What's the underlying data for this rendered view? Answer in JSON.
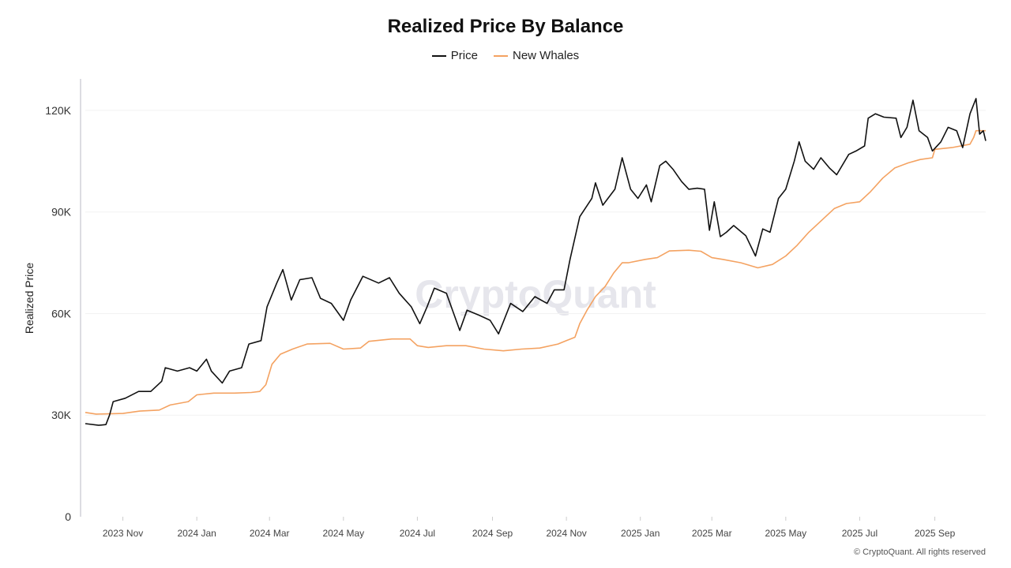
{
  "chart_data": {
    "type": "line",
    "title": "Realized Price By Balance",
    "xlabel": "",
    "ylabel": "Realized Price",
    "ylim": [
      0,
      130000
    ],
    "xlim": [
      "2023-10-01",
      "2025-10-13"
    ],
    "y_ticks": [
      0,
      30000,
      60000,
      90000,
      120000
    ],
    "y_tick_labels": [
      "0",
      "30K",
      "60K",
      "90K",
      "120K"
    ],
    "x_ticks": [
      "2023-11-01",
      "2024-01-01",
      "2024-03-01",
      "2024-05-01",
      "2024-07-01",
      "2024-09-01",
      "2024-11-01",
      "2025-01-01",
      "2025-03-01",
      "2025-05-01",
      "2025-07-01",
      "2025-09-01"
    ],
    "x_tick_labels": [
      "2023 Nov",
      "2024 Jan",
      "2024 Mar",
      "2024 May",
      "2024 Jul",
      "2024 Sep",
      "2024 Nov",
      "2025 Jan",
      "2025 Mar",
      "2025 May",
      "2025 Jul",
      "2025 Sep"
    ],
    "grid": "horizontal",
    "legend_position": "top-center",
    "watermark": "CryptoQuant",
    "series": [
      {
        "name": "Price",
        "color": "#111111",
        "points": [
          [
            "2023-10-01",
            27500
          ],
          [
            "2023-10-12",
            27000
          ],
          [
            "2023-10-18",
            27200
          ],
          [
            "2023-10-21",
            30000
          ],
          [
            "2023-10-24",
            34000
          ],
          [
            "2023-11-03",
            35000
          ],
          [
            "2023-11-14",
            37000
          ],
          [
            "2023-11-24",
            37000
          ],
          [
            "2023-12-03",
            40000
          ],
          [
            "2023-12-06",
            44000
          ],
          [
            "2023-12-16",
            43000
          ],
          [
            "2023-12-26",
            44000
          ],
          [
            "2024-01-01",
            43000
          ],
          [
            "2024-01-09",
            46500
          ],
          [
            "2024-01-13",
            43000
          ],
          [
            "2024-01-22",
            39500
          ],
          [
            "2024-01-28",
            43000
          ],
          [
            "2024-02-07",
            44000
          ],
          [
            "2024-02-13",
            51000
          ],
          [
            "2024-02-23",
            52000
          ],
          [
            "2024-02-28",
            62000
          ],
          [
            "2024-03-07",
            69000
          ],
          [
            "2024-03-12",
            73000
          ],
          [
            "2024-03-19",
            64000
          ],
          [
            "2024-03-26",
            70000
          ],
          [
            "2024-04-05",
            70600
          ],
          [
            "2024-04-12",
            64500
          ],
          [
            "2024-04-21",
            63000
          ],
          [
            "2024-05-01",
            58000
          ],
          [
            "2024-05-07",
            64000
          ],
          [
            "2024-05-17",
            71000
          ],
          [
            "2024-05-30",
            69000
          ],
          [
            "2024-06-08",
            70600
          ],
          [
            "2024-06-16",
            66000
          ],
          [
            "2024-06-26",
            62000
          ],
          [
            "2024-07-03",
            57000
          ],
          [
            "2024-07-09",
            62000
          ],
          [
            "2024-07-15",
            67500
          ],
          [
            "2024-07-25",
            66000
          ],
          [
            "2024-08-05",
            55000
          ],
          [
            "2024-08-11",
            61000
          ],
          [
            "2024-08-21",
            59500
          ],
          [
            "2024-08-30",
            58000
          ],
          [
            "2024-09-06",
            54000
          ],
          [
            "2024-09-16",
            63000
          ],
          [
            "2024-09-26",
            60600
          ],
          [
            "2024-10-06",
            65000
          ],
          [
            "2024-10-16",
            63000
          ],
          [
            "2024-10-22",
            67000
          ],
          [
            "2024-10-30",
            67000
          ],
          [
            "2024-11-04",
            76000
          ],
          [
            "2024-11-12",
            88600
          ],
          [
            "2024-11-22",
            94000
          ],
          [
            "2024-11-25",
            98600
          ],
          [
            "2024-12-01",
            92000
          ],
          [
            "2024-12-11",
            96700
          ],
          [
            "2024-12-17",
            106000
          ],
          [
            "2024-12-24",
            96700
          ],
          [
            "2024-12-30",
            94000
          ],
          [
            "2025-01-06",
            98000
          ],
          [
            "2025-01-10",
            93000
          ],
          [
            "2025-01-17",
            103700
          ],
          [
            "2025-01-22",
            105000
          ],
          [
            "2025-01-28",
            102600
          ],
          [
            "2025-02-04",
            99000
          ],
          [
            "2025-02-10",
            96700
          ],
          [
            "2025-02-17",
            97000
          ],
          [
            "2025-02-23",
            96700
          ],
          [
            "2025-02-27",
            84600
          ],
          [
            "2025-03-03",
            93000
          ],
          [
            "2025-03-08",
            82700
          ],
          [
            "2025-03-13",
            84000
          ],
          [
            "2025-03-19",
            86000
          ],
          [
            "2025-03-29",
            83000
          ],
          [
            "2025-04-06",
            77000
          ],
          [
            "2025-04-12",
            85000
          ],
          [
            "2025-04-18",
            84000
          ],
          [
            "2025-04-25",
            94000
          ],
          [
            "2025-05-01",
            96700
          ],
          [
            "2025-05-08",
            105000
          ],
          [
            "2025-05-12",
            110700
          ],
          [
            "2025-05-17",
            105000
          ],
          [
            "2025-05-24",
            102600
          ],
          [
            "2025-05-30",
            106000
          ],
          [
            "2025-06-06",
            103000
          ],
          [
            "2025-06-12",
            101000
          ],
          [
            "2025-06-22",
            107000
          ],
          [
            "2025-06-28",
            108000
          ],
          [
            "2025-07-05",
            109500
          ],
          [
            "2025-07-08",
            117700
          ],
          [
            "2025-07-14",
            119000
          ],
          [
            "2025-07-21",
            118000
          ],
          [
            "2025-07-31",
            117700
          ],
          [
            "2025-08-04",
            112000
          ],
          [
            "2025-08-09",
            115000
          ],
          [
            "2025-08-14",
            123000
          ],
          [
            "2025-08-19",
            114000
          ],
          [
            "2025-08-26",
            112000
          ],
          [
            "2025-08-30",
            108000
          ],
          [
            "2025-09-06",
            110700
          ],
          [
            "2025-09-12",
            115000
          ],
          [
            "2025-09-19",
            114000
          ],
          [
            "2025-09-24",
            109000
          ],
          [
            "2025-09-30",
            119000
          ],
          [
            "2025-10-05",
            123500
          ],
          [
            "2025-10-08",
            113000
          ],
          [
            "2025-10-11",
            114000
          ],
          [
            "2025-10-13",
            111000
          ]
        ]
      },
      {
        "name": "New Whales",
        "color": "#f4a261",
        "points": [
          [
            "2023-10-01",
            30800
          ],
          [
            "2023-10-10",
            30300
          ],
          [
            "2023-11-01",
            30500
          ],
          [
            "2023-11-15",
            31200
          ],
          [
            "2023-12-01",
            31500
          ],
          [
            "2023-12-10",
            33000
          ],
          [
            "2023-12-25",
            34000
          ],
          [
            "2024-01-01",
            36000
          ],
          [
            "2024-01-15",
            36500
          ],
          [
            "2024-02-01",
            36500
          ],
          [
            "2024-02-15",
            36700
          ],
          [
            "2024-02-22",
            37000
          ],
          [
            "2024-02-27",
            39000
          ],
          [
            "2024-03-03",
            45000
          ],
          [
            "2024-03-10",
            48000
          ],
          [
            "2024-03-20",
            49500
          ],
          [
            "2024-04-01",
            51000
          ],
          [
            "2024-04-20",
            51200
          ],
          [
            "2024-05-01",
            49500
          ],
          [
            "2024-05-15",
            49800
          ],
          [
            "2024-05-22",
            51800
          ],
          [
            "2024-06-10",
            52500
          ],
          [
            "2024-06-25",
            52500
          ],
          [
            "2024-07-01",
            50500
          ],
          [
            "2024-07-10",
            50000
          ],
          [
            "2024-07-25",
            50500
          ],
          [
            "2024-08-10",
            50500
          ],
          [
            "2024-08-25",
            49500
          ],
          [
            "2024-09-10",
            49000
          ],
          [
            "2024-09-25",
            49500
          ],
          [
            "2024-10-10",
            49800
          ],
          [
            "2024-10-25",
            51000
          ],
          [
            "2024-11-01",
            52000
          ],
          [
            "2024-11-08",
            53000
          ],
          [
            "2024-11-12",
            57000
          ],
          [
            "2024-11-18",
            61000
          ],
          [
            "2024-11-25",
            65000
          ],
          [
            "2024-12-03",
            68000
          ],
          [
            "2024-12-10",
            72000
          ],
          [
            "2024-12-17",
            75000
          ],
          [
            "2024-12-22",
            75000
          ],
          [
            "2025-01-05",
            76000
          ],
          [
            "2025-01-15",
            76500
          ],
          [
            "2025-01-25",
            78500
          ],
          [
            "2025-02-10",
            78700
          ],
          [
            "2025-02-20",
            78400
          ],
          [
            "2025-03-01",
            76500
          ],
          [
            "2025-03-10",
            76000
          ],
          [
            "2025-03-25",
            75000
          ],
          [
            "2025-04-08",
            73500
          ],
          [
            "2025-04-20",
            74500
          ],
          [
            "2025-05-01",
            77000
          ],
          [
            "2025-05-10",
            80000
          ],
          [
            "2025-05-20",
            84000
          ],
          [
            "2025-06-01",
            88000
          ],
          [
            "2025-06-10",
            91000
          ],
          [
            "2025-06-20",
            92500
          ],
          [
            "2025-07-01",
            93000
          ],
          [
            "2025-07-10",
            96000
          ],
          [
            "2025-07-20",
            100000
          ],
          [
            "2025-07-30",
            103000
          ],
          [
            "2025-08-10",
            104500
          ],
          [
            "2025-08-20",
            105500
          ],
          [
            "2025-08-30",
            106000
          ],
          [
            "2025-09-01",
            108500
          ],
          [
            "2025-09-15",
            109000
          ],
          [
            "2025-09-30",
            110000
          ],
          [
            "2025-10-03",
            112000
          ],
          [
            "2025-10-05",
            114000
          ],
          [
            "2025-10-13",
            114000
          ]
        ]
      }
    ]
  },
  "footer": "© CryptoQuant. All rights reserved"
}
